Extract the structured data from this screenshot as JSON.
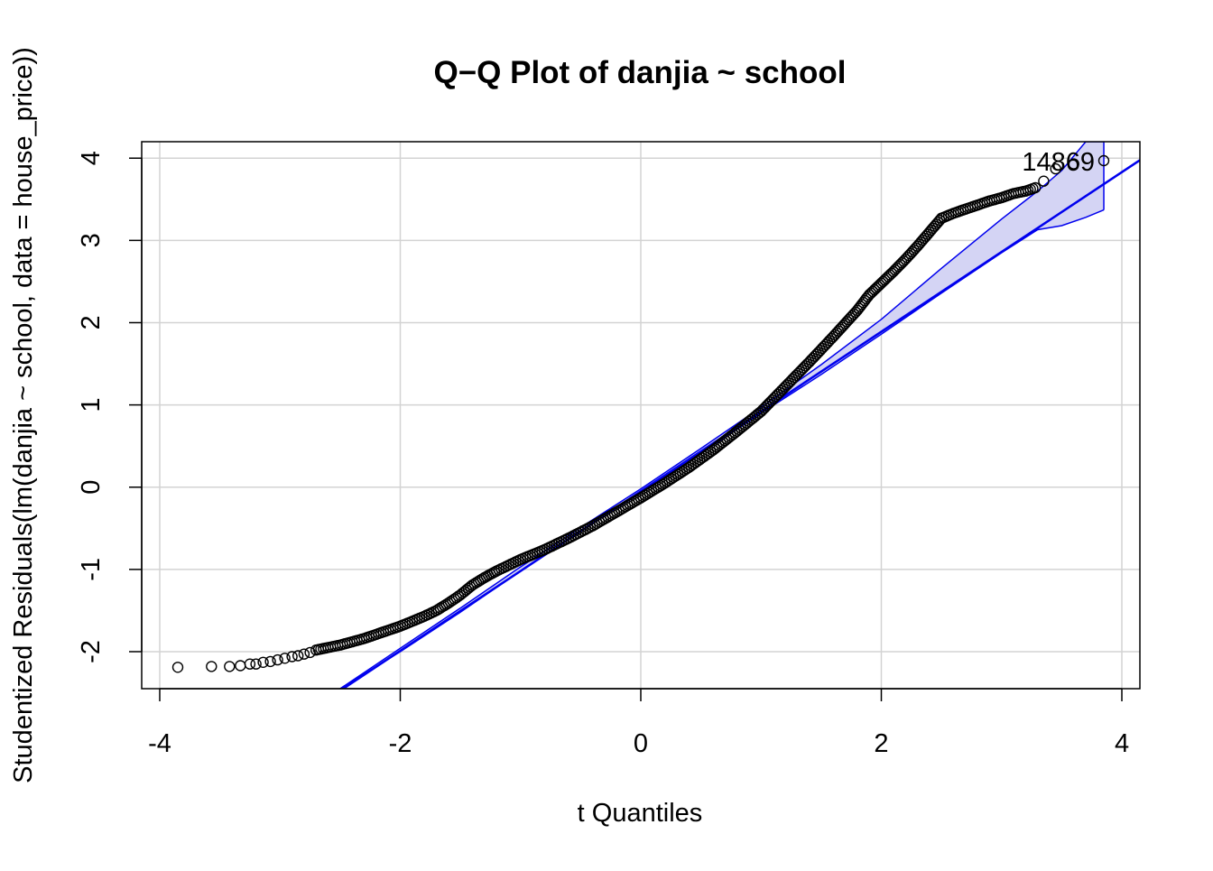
{
  "chart_data": {
    "type": "scatter",
    "title": "Q−Q Plot of danjia ~ school",
    "xlabel": "t Quantiles",
    "ylabel": "Studentized Residuals(lm(danjia ~ school, data = house_price))",
    "xlim": [
      -4.15,
      4.15
    ],
    "ylim": [
      -2.45,
      4.2
    ],
    "x_ticks": [
      -4,
      -2,
      0,
      2,
      4
    ],
    "y_ticks": [
      -2,
      -1,
      0,
      1,
      2,
      3,
      4
    ],
    "x_tick_labels": [
      "-4",
      "-2",
      "0",
      "2",
      "4"
    ],
    "y_tick_labels": [
      "-2",
      "-1",
      "0",
      "1",
      "2",
      "3",
      "4"
    ],
    "grid": true,
    "reference_line": {
      "intercept": -0.05,
      "slope": 0.97
    },
    "colors": {
      "points": "#000000",
      "line": "#0000ee",
      "envelope_fill": "#d4d4f4",
      "grid": "#d3d3d3"
    },
    "outlier_label": {
      "text": "14869",
      "x": 3.85,
      "y": 3.97
    },
    "series": [
      {
        "values": [
          [
            -3.85,
            -2.19
          ],
          [
            -3.57,
            -2.18
          ],
          [
            -3.42,
            -2.18
          ],
          [
            -3.33,
            -2.17
          ],
          [
            -3.25,
            -2.15
          ],
          [
            -3.2,
            -2.15
          ],
          [
            -3.14,
            -2.13
          ],
          [
            -3.08,
            -2.12
          ],
          [
            -3.02,
            -2.1
          ],
          [
            -2.96,
            -2.08
          ],
          [
            -2.9,
            -2.06
          ],
          [
            -2.85,
            -2.05
          ],
          [
            -2.8,
            -2.03
          ],
          [
            -2.75,
            -2.01
          ],
          [
            -2.7,
            -1.98
          ],
          [
            -2.6,
            -1.95
          ],
          [
            -2.5,
            -1.92
          ],
          [
            -2.4,
            -1.88
          ],
          [
            -2.3,
            -1.84
          ],
          [
            -2.2,
            -1.79
          ],
          [
            -2.1,
            -1.74
          ],
          [
            -2.0,
            -1.69
          ],
          [
            -1.9,
            -1.63
          ],
          [
            -1.8,
            -1.57
          ],
          [
            -1.7,
            -1.5
          ],
          [
            -1.6,
            -1.41
          ],
          [
            -1.5,
            -1.31
          ],
          [
            -1.4,
            -1.19
          ],
          [
            -1.3,
            -1.1
          ],
          [
            -1.2,
            -1.02
          ],
          [
            -1.1,
            -0.95
          ],
          [
            -1.0,
            -0.88
          ],
          [
            -0.8,
            -0.76
          ],
          [
            -0.6,
            -0.62
          ],
          [
            -0.4,
            -0.47
          ],
          [
            -0.2,
            -0.3
          ],
          [
            0.0,
            -0.13
          ],
          [
            0.2,
            0.05
          ],
          [
            0.4,
            0.24
          ],
          [
            0.6,
            0.45
          ],
          [
            0.8,
            0.68
          ],
          [
            1.0,
            0.92
          ],
          [
            1.2,
            1.22
          ],
          [
            1.4,
            1.52
          ],
          [
            1.6,
            1.83
          ],
          [
            1.8,
            2.15
          ],
          [
            1.9,
            2.34
          ],
          [
            2.0,
            2.48
          ],
          [
            2.1,
            2.62
          ],
          [
            2.2,
            2.77
          ],
          [
            2.3,
            2.93
          ],
          [
            2.4,
            3.1
          ],
          [
            2.5,
            3.27
          ],
          [
            2.6,
            3.33
          ],
          [
            2.7,
            3.38
          ],
          [
            2.8,
            3.43
          ],
          [
            2.9,
            3.48
          ],
          [
            3.0,
            3.52
          ],
          [
            3.1,
            3.57
          ],
          [
            3.2,
            3.6
          ],
          [
            3.28,
            3.64
          ],
          [
            3.35,
            3.72
          ],
          [
            3.45,
            3.87
          ],
          [
            3.6,
            3.93
          ],
          [
            3.85,
            3.97
          ]
        ]
      }
    ],
    "envelope": {
      "x": [
        -2.5,
        -2.0,
        -1.5,
        -1.0,
        -0.5,
        0.0,
        0.5,
        1.0,
        1.5,
        2.0,
        2.5,
        3.0,
        3.3,
        3.5,
        3.7,
        3.85
      ],
      "upper": [
        -2.45,
        -1.96,
        -1.47,
        -0.97,
        -0.49,
        -0.02,
        0.47,
        0.97,
        1.49,
        2.04,
        2.66,
        3.26,
        3.6,
        3.85,
        4.2,
        4.2
      ],
      "lower": [
        -2.45,
        -2.0,
        -1.52,
        -1.02,
        -0.53,
        -0.07,
        0.41,
        0.9,
        1.37,
        1.86,
        2.36,
        2.85,
        3.13,
        3.18,
        3.28,
        3.37
      ]
    }
  }
}
